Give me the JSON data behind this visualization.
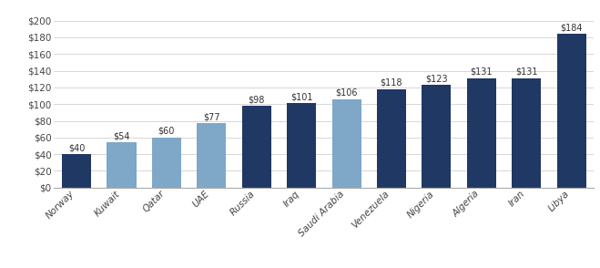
{
  "categories": [
    "Norway",
    "Kuwait",
    "Qatar",
    "UAE",
    "Russia",
    "Iraq",
    "Saudi Arabia",
    "Venezuela",
    "Nigeria",
    "Algeria",
    "Iran",
    "Libya"
  ],
  "values": [
    40,
    54,
    60,
    77,
    98,
    101,
    106,
    118,
    123,
    131,
    131,
    184
  ],
  "colors": [
    "#1f3864",
    "#7fa7c8",
    "#7fa7c8",
    "#7fa7c8",
    "#1f3864",
    "#1f3864",
    "#7fa7c8",
    "#1f3864",
    "#1f3864",
    "#1f3864",
    "#1f3864",
    "#1f3864"
  ],
  "yticks": [
    0,
    20,
    40,
    60,
    80,
    100,
    120,
    140,
    160,
    180,
    200
  ],
  "ylim": [
    0,
    215
  ],
  "background_color": "#ffffff"
}
